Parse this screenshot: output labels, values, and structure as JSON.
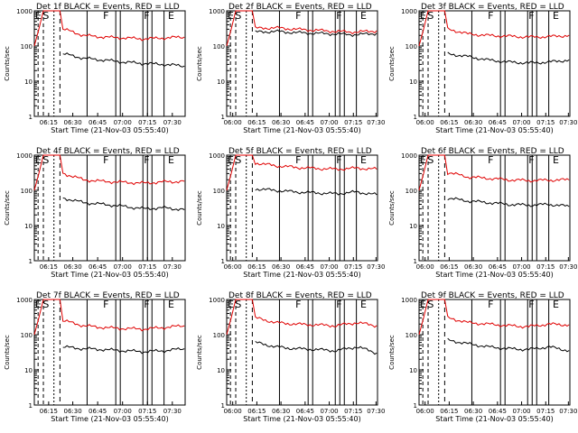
{
  "colors": {
    "events": "#000000",
    "lld": "#e00000",
    "axis": "#000000"
  },
  "chart_data": [
    {
      "type": "line",
      "title": "Det 1f BLACK = Events, RED = LLD",
      "xlabel": "Start Time (21-Nov-03 05:55:40)",
      "ylabel": "Counts/sec",
      "log_y": true,
      "ylim": [
        1,
        1000
      ],
      "yticks": [
        "1",
        "10",
        "100",
        "1000"
      ],
      "xtick_labels": [
        "06:30",
        "06:45",
        "07:00",
        "07:15",
        "07:30",
        "06:15"
      ],
      "markers": [
        "E",
        "S",
        "F",
        "F",
        "E"
      ],
      "series": [
        {
          "name": "Events",
          "values": [
            60,
            45,
            40,
            35,
            32,
            30,
            27
          ]
        },
        {
          "name": "LLD",
          "values": [
            300,
            200,
            180,
            170,
            160,
            170,
            180
          ]
        }
      ]
    },
    {
      "type": "line",
      "title": "Det 2f BLACK = Events, RED = LLD",
      "xlabel": "Start Time (21-Nov-03 05:55:40)",
      "ylabel": "Counts/sec",
      "log_y": true,
      "ylim": [
        1,
        1000
      ],
      "yticks": [
        "1",
        "10",
        "100",
        "1000"
      ],
      "xtick_labels": [
        "06:00",
        "06:15",
        "06:30",
        "06:45",
        "07:00",
        "07:15",
        "07:30"
      ],
      "markers": [
        "E",
        "S",
        "F",
        "F",
        "E"
      ],
      "series": [
        {
          "name": "Events",
          "values": [
            250,
            260,
            240,
            230,
            220,
            210,
            230
          ]
        },
        {
          "name": "LLD",
          "values": [
            320,
            330,
            300,
            280,
            260,
            250,
            270
          ]
        }
      ]
    },
    {
      "type": "line",
      "title": "Det 3f BLACK = Events, RED = LLD",
      "xlabel": "Start Time (21-Nov-03 05:55:40)",
      "ylabel": "Counts/sec",
      "log_y": true,
      "ylim": [
        1,
        1000
      ],
      "yticks": [
        "1",
        "10",
        "100",
        "1000"
      ],
      "xtick_labels": [
        "06:00",
        "06:15",
        "06:30",
        "06:45",
        "07:00",
        "07:15",
        "07:30"
      ],
      "markers": [
        "E",
        "S",
        "F",
        "F",
        "E"
      ],
      "series": [
        {
          "name": "Events",
          "values": [
            60,
            50,
            40,
            35,
            33,
            35,
            40
          ]
        },
        {
          "name": "LLD",
          "values": [
            300,
            220,
            200,
            190,
            180,
            185,
            200
          ]
        }
      ]
    },
    {
      "type": "line",
      "title": "Det 4f BLACK = Events, RED = LLD",
      "xlabel": "Start Time (21-Nov-03 05:55:40)",
      "ylabel": "Counts/sec",
      "log_y": true,
      "ylim": [
        1,
        1000
      ],
      "yticks": [
        "1",
        "10",
        "100",
        "1000"
      ],
      "xtick_labels": [
        "06:30",
        "06:45",
        "07:00",
        "07:15",
        "07:30",
        "06:15"
      ],
      "markers": [
        "E",
        "S",
        "F",
        "F",
        "E"
      ],
      "series": [
        {
          "name": "Events",
          "values": [
            60,
            45,
            40,
            35,
            30,
            32,
            28
          ]
        },
        {
          "name": "LLD",
          "values": [
            300,
            200,
            180,
            170,
            160,
            175,
            180
          ]
        }
      ]
    },
    {
      "type": "line",
      "title": "Det 5f BLACK = Events, RED = LLD",
      "xlabel": "Start Time (21-Nov-03 05:55:40)",
      "ylabel": "Counts/sec",
      "log_y": true,
      "ylim": [
        1,
        1000
      ],
      "yticks": [
        "1",
        "10",
        "100",
        "1000"
      ],
      "xtick_labels": [
        "06:00",
        "06:15",
        "06:30",
        "06:45",
        "07:00",
        "07:15",
        "07:30"
      ],
      "markers": [
        "E",
        "S",
        "F",
        "F",
        "E"
      ],
      "series": [
        {
          "name": "Events",
          "values": [
            110,
            100,
            90,
            85,
            80,
            90,
            75
          ]
        },
        {
          "name": "LLD",
          "values": [
            600,
            500,
            450,
            420,
            400,
            430,
            400
          ]
        }
      ]
    },
    {
      "type": "line",
      "title": "Det 6f BLACK = Events, RED = LLD",
      "xlabel": "Start Time (21-Nov-03 05:55:40)",
      "ylabel": "Counts/sec",
      "log_y": true,
      "ylim": [
        1,
        1000
      ],
      "yticks": [
        "1",
        "10",
        "100",
        "1000"
      ],
      "xtick_labels": [
        "06:00",
        "06:15",
        "06:30",
        "06:45",
        "07:00",
        "07:15",
        "07:30"
      ],
      "markers": [
        "E",
        "S",
        "F",
        "F",
        "E"
      ],
      "series": [
        {
          "name": "Events",
          "values": [
            60,
            50,
            45,
            40,
            38,
            40,
            35
          ]
        },
        {
          "name": "LLD",
          "values": [
            320,
            240,
            220,
            200,
            190,
            195,
            200
          ]
        }
      ]
    },
    {
      "type": "line",
      "title": "Det 7f BLACK = Events, RED = LLD",
      "xlabel": "Start Time (21-Nov-03 05:55:40)",
      "ylabel": "Counts/sec",
      "log_y": true,
      "ylim": [
        1,
        1000
      ],
      "yticks": [
        "1",
        "10",
        "100",
        "1000"
      ],
      "xtick_labels": [
        "06:30",
        "06:45",
        "07:00",
        "07:15",
        "07:30",
        "06:15"
      ],
      "markers": [
        "E",
        "S",
        "F",
        "F",
        "E"
      ],
      "series": [
        {
          "name": "Events",
          "values": [
            45,
            40,
            38,
            35,
            33,
            35,
            40
          ]
        },
        {
          "name": "LLD",
          "values": [
            250,
            180,
            160,
            150,
            145,
            160,
            180
          ]
        }
      ]
    },
    {
      "type": "line",
      "title": "Det 8f BLACK = Events, RED = LLD",
      "xlabel": "Start Time (21-Nov-03 05:55:40)",
      "ylabel": "Counts/sec",
      "log_y": true,
      "ylim": [
        1,
        1000
      ],
      "yticks": [
        "1",
        "10",
        "100",
        "1000"
      ],
      "xtick_labels": [
        "06:00",
        "06:15",
        "06:30",
        "06:45",
        "07:00",
        "07:15",
        "07:30"
      ],
      "markers": [
        "E",
        "S",
        "F",
        "F",
        "E"
      ],
      "series": [
        {
          "name": "Events",
          "values": [
            60,
            45,
            40,
            38,
            35,
            45,
            30
          ]
        },
        {
          "name": "LLD",
          "values": [
            300,
            220,
            200,
            190,
            180,
            220,
            180
          ]
        }
      ]
    },
    {
      "type": "line",
      "title": "Det 9f BLACK = Events, RED = LLD",
      "xlabel": "Start Time (21-Nov-03 05:55:40)",
      "ylabel": "Counts/sec",
      "log_y": true,
      "ylim": [
        1,
        1000
      ],
      "yticks": [
        "1",
        "10",
        "100",
        "1000"
      ],
      "xtick_labels": [
        "06:00",
        "06:15",
        "06:30",
        "06:45",
        "07:00",
        "07:15",
        "07:30"
      ],
      "markers": [
        "E",
        "S",
        "F",
        "F",
        "E"
      ],
      "series": [
        {
          "name": "Events",
          "values": [
            70,
            55,
            45,
            40,
            38,
            45,
            35
          ]
        },
        {
          "name": "LLD",
          "values": [
            300,
            220,
            200,
            180,
            170,
            200,
            190
          ]
        }
      ]
    }
  ]
}
